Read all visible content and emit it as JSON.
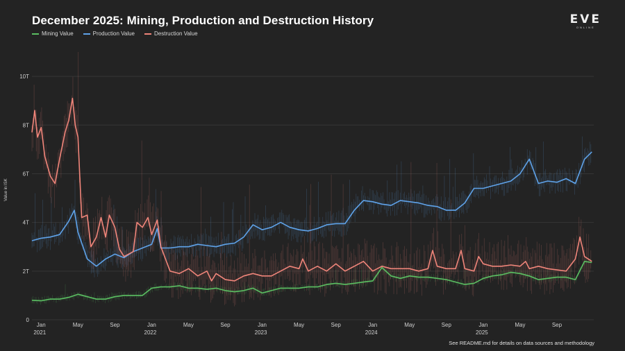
{
  "header": {
    "title": "December 2025: Mining, Production and Destruction History",
    "logo_main": "EVE",
    "logo_sub": "ONLINE"
  },
  "legend": {
    "items": [
      {
        "label": "Mining Value",
        "color": "#5bbf62"
      },
      {
        "label": "Production Value",
        "color": "#5fa3ea"
      },
      {
        "label": "Destruction Value",
        "color": "#f0857a"
      }
    ]
  },
  "footnote": "See README.md for details on data sources and methodology",
  "chart_data": {
    "type": "line",
    "title": "December 2025: Mining, Production and Destruction History",
    "xlabel": "",
    "ylabel": "Value in ISK",
    "ylim": [
      0,
      11
    ],
    "y_unit": "trillion ISK",
    "x_range": [
      "2020-12-01",
      "2025-12-31"
    ],
    "y_ticks": [
      {
        "value": 0,
        "label": "0"
      },
      {
        "value": 2,
        "label": "2T"
      },
      {
        "value": 4,
        "label": "4T"
      },
      {
        "value": 6,
        "label": "6T"
      },
      {
        "value": 8,
        "label": "8T"
      },
      {
        "value": 10,
        "label": "10T"
      }
    ],
    "x_ticks": [
      {
        "month": 1,
        "label": "Jan",
        "year_label": "2021"
      },
      {
        "month": 5,
        "label": "May",
        "year_label": ""
      },
      {
        "month": 9,
        "label": "Sep",
        "year_label": ""
      },
      {
        "month": 13,
        "label": "Jan",
        "year_label": "2022"
      },
      {
        "month": 17,
        "label": "May",
        "year_label": ""
      },
      {
        "month": 21,
        "label": "Sep",
        "year_label": ""
      },
      {
        "month": 25,
        "label": "Jan",
        "year_label": "2023"
      },
      {
        "month": 29,
        "label": "May",
        "year_label": ""
      },
      {
        "month": 33,
        "label": "Sep",
        "year_label": ""
      },
      {
        "month": 37,
        "label": "Jan",
        "year_label": "2024"
      },
      {
        "month": 41,
        "label": "May",
        "year_label": ""
      },
      {
        "month": 45,
        "label": "Sep",
        "year_label": ""
      },
      {
        "month": 49,
        "label": "Jan",
        "year_label": "2025"
      },
      {
        "month": 53,
        "label": "May",
        "year_label": ""
      },
      {
        "month": 57,
        "label": "Sep",
        "year_label": ""
      }
    ],
    "x_max_month": 61,
    "series": [
      {
        "name": "Mining Value",
        "color": "#5bbf62",
        "points": [
          [
            0,
            0.8
          ],
          [
            1,
            0.78
          ],
          [
            2,
            0.85
          ],
          [
            3,
            0.85
          ],
          [
            4,
            0.92
          ],
          [
            5,
            1.05
          ],
          [
            6,
            0.95
          ],
          [
            7,
            0.85
          ],
          [
            8,
            0.85
          ],
          [
            9,
            0.95
          ],
          [
            10,
            1.0
          ],
          [
            11,
            1.0
          ],
          [
            12,
            1.0
          ],
          [
            13,
            1.3
          ],
          [
            14,
            1.35
          ],
          [
            15,
            1.35
          ],
          [
            16,
            1.4
          ],
          [
            17,
            1.3
          ],
          [
            18,
            1.3
          ],
          [
            19,
            1.25
          ],
          [
            20,
            1.3
          ],
          [
            21,
            1.2
          ],
          [
            22,
            1.15
          ],
          [
            23,
            1.2
          ],
          [
            24,
            1.3
          ],
          [
            25,
            1.1
          ],
          [
            26,
            1.2
          ],
          [
            27,
            1.3
          ],
          [
            28,
            1.3
          ],
          [
            29,
            1.3
          ],
          [
            30,
            1.35
          ],
          [
            31,
            1.35
          ],
          [
            32,
            1.45
          ],
          [
            33,
            1.5
          ],
          [
            34,
            1.45
          ],
          [
            35,
            1.5
          ],
          [
            36,
            1.55
          ],
          [
            37,
            1.6
          ],
          [
            38,
            2.15
          ],
          [
            39,
            1.8
          ],
          [
            40,
            1.7
          ],
          [
            41,
            1.8
          ],
          [
            42,
            1.75
          ],
          [
            43,
            1.75
          ],
          [
            44,
            1.7
          ],
          [
            45,
            1.65
          ],
          [
            46,
            1.55
          ],
          [
            47,
            1.45
          ],
          [
            48,
            1.5
          ],
          [
            49,
            1.7
          ],
          [
            50,
            1.8
          ],
          [
            51,
            1.85
          ],
          [
            52,
            1.95
          ],
          [
            53,
            1.9
          ],
          [
            54,
            1.8
          ],
          [
            55,
            1.65
          ],
          [
            56,
            1.7
          ],
          [
            57,
            1.75
          ],
          [
            58,
            1.75
          ],
          [
            59,
            1.65
          ],
          [
            60,
            2.4
          ],
          [
            60.8,
            2.35
          ]
        ]
      },
      {
        "name": "Production Value",
        "color": "#5fa3ea",
        "points": [
          [
            0,
            3.25
          ],
          [
            1,
            3.35
          ],
          [
            2,
            3.4
          ],
          [
            3,
            3.5
          ],
          [
            4,
            4.05
          ],
          [
            4.6,
            4.5
          ],
          [
            5,
            3.6
          ],
          [
            6,
            2.5
          ],
          [
            7,
            2.2
          ],
          [
            8,
            2.5
          ],
          [
            9,
            2.7
          ],
          [
            10,
            2.55
          ],
          [
            11,
            2.8
          ],
          [
            12,
            2.95
          ],
          [
            13,
            3.1
          ],
          [
            13.6,
            3.75
          ],
          [
            14,
            2.95
          ],
          [
            15,
            2.95
          ],
          [
            16,
            3.0
          ],
          [
            17,
            3.0
          ],
          [
            18,
            3.1
          ],
          [
            19,
            3.05
          ],
          [
            20,
            3.0
          ],
          [
            21,
            3.1
          ],
          [
            22,
            3.15
          ],
          [
            23,
            3.4
          ],
          [
            24,
            3.9
          ],
          [
            25,
            3.7
          ],
          [
            26,
            3.8
          ],
          [
            27,
            4.0
          ],
          [
            28,
            3.8
          ],
          [
            29,
            3.7
          ],
          [
            30,
            3.65
          ],
          [
            31,
            3.75
          ],
          [
            32,
            3.9
          ],
          [
            33,
            3.95
          ],
          [
            34,
            3.95
          ],
          [
            35,
            4.5
          ],
          [
            36,
            4.9
          ],
          [
            37,
            4.85
          ],
          [
            38,
            4.75
          ],
          [
            39,
            4.7
          ],
          [
            40,
            4.9
          ],
          [
            41,
            4.85
          ],
          [
            42,
            4.8
          ],
          [
            43,
            4.7
          ],
          [
            44,
            4.65
          ],
          [
            45,
            4.5
          ],
          [
            46,
            4.5
          ],
          [
            47,
            4.8
          ],
          [
            48,
            5.4
          ],
          [
            49,
            5.4
          ],
          [
            50,
            5.5
          ],
          [
            51,
            5.6
          ],
          [
            52,
            5.7
          ],
          [
            53,
            6.0
          ],
          [
            54,
            6.6
          ],
          [
            55,
            5.6
          ],
          [
            56,
            5.7
          ],
          [
            57,
            5.65
          ],
          [
            58,
            5.8
          ],
          [
            59,
            5.6
          ],
          [
            60,
            6.6
          ],
          [
            60.8,
            6.9
          ]
        ]
      },
      {
        "name": "Destruction Value",
        "color": "#f0857a",
        "points": [
          [
            0,
            7.7
          ],
          [
            0.3,
            8.6
          ],
          [
            0.6,
            7.5
          ],
          [
            1,
            7.9
          ],
          [
            1.4,
            6.7
          ],
          [
            2,
            5.9
          ],
          [
            2.5,
            5.6
          ],
          [
            3,
            6.6
          ],
          [
            3.6,
            7.7
          ],
          [
            4,
            8.2
          ],
          [
            4.4,
            9.1
          ],
          [
            4.7,
            8.0
          ],
          [
            5,
            7.5
          ],
          [
            5.4,
            4.2
          ],
          [
            6,
            4.3
          ],
          [
            6.4,
            3.0
          ],
          [
            7,
            3.4
          ],
          [
            7.5,
            4.2
          ],
          [
            8,
            3.4
          ],
          [
            8.4,
            4.3
          ],
          [
            9,
            3.8
          ],
          [
            9.5,
            2.9
          ],
          [
            10,
            2.6
          ],
          [
            11,
            2.8
          ],
          [
            11.4,
            4.0
          ],
          [
            12,
            3.8
          ],
          [
            12.6,
            4.2
          ],
          [
            13,
            3.5
          ],
          [
            13.6,
            4.1
          ],
          [
            14,
            3.0
          ],
          [
            15,
            2.0
          ],
          [
            16,
            1.9
          ],
          [
            17,
            2.1
          ],
          [
            18,
            1.8
          ],
          [
            19,
            2.0
          ],
          [
            19.5,
            1.6
          ],
          [
            20,
            1.9
          ],
          [
            21,
            1.65
          ],
          [
            22,
            1.6
          ],
          [
            23,
            1.8
          ],
          [
            24,
            1.9
          ],
          [
            25,
            1.8
          ],
          [
            26,
            1.8
          ],
          [
            27,
            2.0
          ],
          [
            28,
            2.2
          ],
          [
            29,
            2.1
          ],
          [
            29.4,
            2.5
          ],
          [
            30,
            2.0
          ],
          [
            31,
            2.2
          ],
          [
            32,
            2.0
          ],
          [
            33,
            2.3
          ],
          [
            34,
            2.0
          ],
          [
            35,
            2.2
          ],
          [
            36,
            2.4
          ],
          [
            37,
            2.0
          ],
          [
            38,
            2.2
          ],
          [
            39,
            2.1
          ],
          [
            40,
            2.1
          ],
          [
            41,
            2.1
          ],
          [
            42,
            2.0
          ],
          [
            43,
            2.1
          ],
          [
            43.5,
            2.85
          ],
          [
            44,
            2.2
          ],
          [
            45,
            2.1
          ],
          [
            46,
            2.1
          ],
          [
            46.6,
            2.85
          ],
          [
            47,
            2.1
          ],
          [
            48,
            2.0
          ],
          [
            48.5,
            2.6
          ],
          [
            49,
            2.3
          ],
          [
            50,
            2.2
          ],
          [
            51,
            2.2
          ],
          [
            52,
            2.25
          ],
          [
            53,
            2.2
          ],
          [
            53.6,
            2.4
          ],
          [
            54,
            2.1
          ],
          [
            55,
            2.2
          ],
          [
            56,
            2.1
          ],
          [
            57,
            2.05
          ],
          [
            58,
            2.0
          ],
          [
            59,
            2.5
          ],
          [
            59.5,
            3.4
          ],
          [
            60,
            2.6
          ],
          [
            60.8,
            2.4
          ]
        ]
      }
    ]
  }
}
